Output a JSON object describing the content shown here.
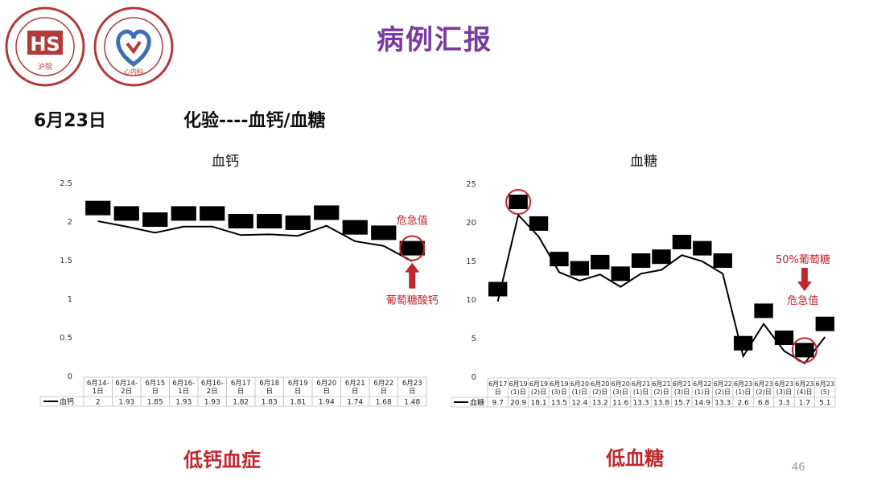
{
  "title": "病例汇报",
  "date": "6月23日",
  "test": "化验----血钙/血糖",
  "page_number": "46",
  "logo_left_letters": "HS",
  "logo_left_text": "沪院",
  "logo_right_text": "心内科",
  "colors": {
    "title": "#7a3aa0",
    "alert": "#c0272d",
    "line": "#000000",
    "logo": "#b23a3a",
    "logo_blue": "#3b6fb6"
  },
  "calcium": {
    "title": "血钙",
    "diagnosis": "低钙血症",
    "alert_label": "危急值",
    "treatment_label": "葡萄糖酸钙",
    "series_name": "血钙"
  },
  "glucose": {
    "title": "血糖",
    "diagnosis": "低血糖",
    "alert_label": "危急值",
    "treatment_label": "50%葡萄糖",
    "series_name": "血糖"
  },
  "chart_data": [
    {
      "type": "line",
      "title": "血钙",
      "ylim": [
        0,
        2.5
      ],
      "yticks": [
        "0",
        "0.5",
        "1",
        "1.5",
        "2",
        "2.5"
      ],
      "categories": [
        [
          "6月14-",
          "1日"
        ],
        [
          "6月14-",
          "2日"
        ],
        [
          "6月15",
          "日"
        ],
        [
          "6月16-",
          "1日"
        ],
        [
          "6月16-",
          "2日"
        ],
        [
          "6月17",
          "日"
        ],
        [
          "6月18",
          "日"
        ],
        [
          "6月19",
          "日"
        ],
        [
          "6月20",
          "日"
        ],
        [
          "6月21",
          "日"
        ],
        [
          "6月22",
          "日"
        ],
        [
          "6月23",
          "日"
        ]
      ],
      "series": [
        {
          "name": "血钙",
          "values": [
            2,
            1.93,
            1.85,
            1.93,
            1.93,
            1.82,
            1.83,
            1.81,
            1.94,
            1.74,
            1.68,
            1.48
          ]
        }
      ],
      "labels": [
        "2",
        "1.93",
        "1.85",
        "1.93",
        "1.93",
        "1.82",
        "1.83",
        "1.81",
        "1.94",
        "1.74",
        "1.68",
        "1.48"
      ],
      "box_values": [
        2.17,
        2.1,
        2.02,
        2.1,
        2.1,
        2.0,
        2.0,
        1.98,
        2.11,
        1.92,
        1.85,
        1.65
      ],
      "highlight_index": 11
    },
    {
      "type": "line",
      "title": "血糖",
      "ylim": [
        0,
        25
      ],
      "yticks": [
        "0",
        "5",
        "10",
        "15",
        "20",
        "25"
      ],
      "categories": [
        [
          "6月17",
          "日"
        ],
        [
          "6月19",
          "(1)日"
        ],
        [
          "6月19",
          "(2)日"
        ],
        [
          "6月19",
          "(3)日"
        ],
        [
          "6月20",
          "(1)日"
        ],
        [
          "6月20",
          "(2)日"
        ],
        [
          "6月20",
          "(3)日"
        ],
        [
          "6月21",
          "(1)日"
        ],
        [
          "6月21",
          "(2)日"
        ],
        [
          "6月21",
          "(3)日"
        ],
        [
          "6月22",
          "(1)日"
        ],
        [
          "6月22",
          "(2)日"
        ],
        [
          "6月23",
          "(1)日"
        ],
        [
          "6月23",
          "(2)日"
        ],
        [
          "6月23",
          "(3)日"
        ],
        [
          "6月23",
          "(4)日"
        ],
        [
          "6月23",
          "(5)"
        ]
      ],
      "series": [
        {
          "name": "血糖",
          "values": [
            9.7,
            20.9,
            18.1,
            13.5,
            12.4,
            13.2,
            11.6,
            13.3,
            13.8,
            15.7,
            14.9,
            13.3,
            2.6,
            6.8,
            3.3,
            1.7,
            5.1
          ]
        }
      ],
      "labels": [
        "9.7",
        "20.9",
        "18.1",
        "13.5",
        "12.4",
        "13.2",
        "11.6",
        "13.3",
        "13.8",
        "15.7",
        "14.9",
        "13.3",
        "2.6",
        "6.8",
        "3.3",
        "1.7",
        "5.1"
      ],
      "box_values": [
        11.3,
        22.6,
        19.8,
        15.2,
        14.0,
        14.8,
        13.3,
        15.0,
        15.5,
        17.4,
        16.6,
        15.0,
        4.3,
        8.5,
        5.0,
        3.4,
        6.8
      ],
      "highlight_indices": [
        1,
        15
      ]
    }
  ]
}
